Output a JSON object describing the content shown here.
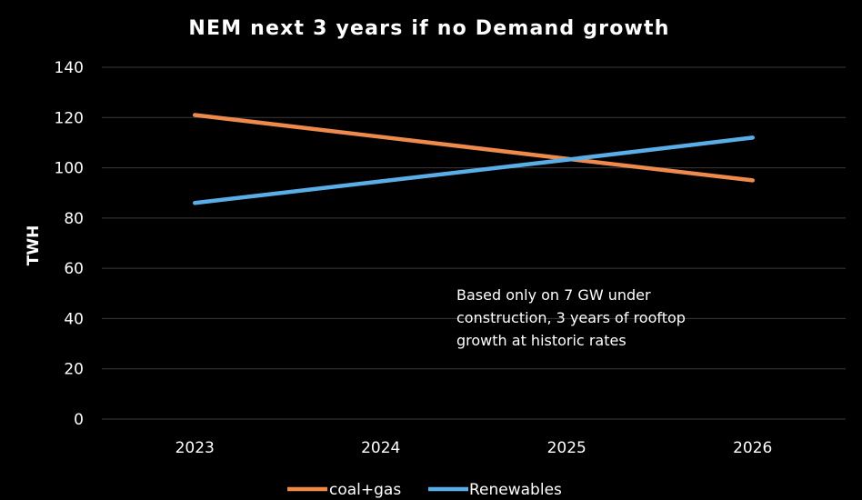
{
  "chart_data": {
    "type": "line",
    "title": "NEM next 3 years if no Demand growth",
    "xlabel": "",
    "ylabel": "TWH",
    "categories": [
      "2023",
      "2024",
      "2025",
      "2026"
    ],
    "ylim": [
      0,
      140
    ],
    "yticks": [
      0,
      20,
      40,
      60,
      80,
      100,
      120,
      140
    ],
    "grid": true,
    "legend_position": "bottom",
    "series": [
      {
        "name": "coal+gas",
        "color": "#ed8a4c",
        "values": [
          121,
          112.3,
          103.6,
          95
        ]
      },
      {
        "name": "Renewables",
        "color": "#5aaee8",
        "values": [
          86,
          94.6,
          103.2,
          112
        ]
      }
    ],
    "annotation": {
      "lines": [
        "Based only on 7 GW under",
        "construction, 3 years of rooftop",
        "growth at historic rates"
      ]
    },
    "gridline_color": "#3a3a3a",
    "background": "#000000",
    "text_color": "#ffffff"
  }
}
